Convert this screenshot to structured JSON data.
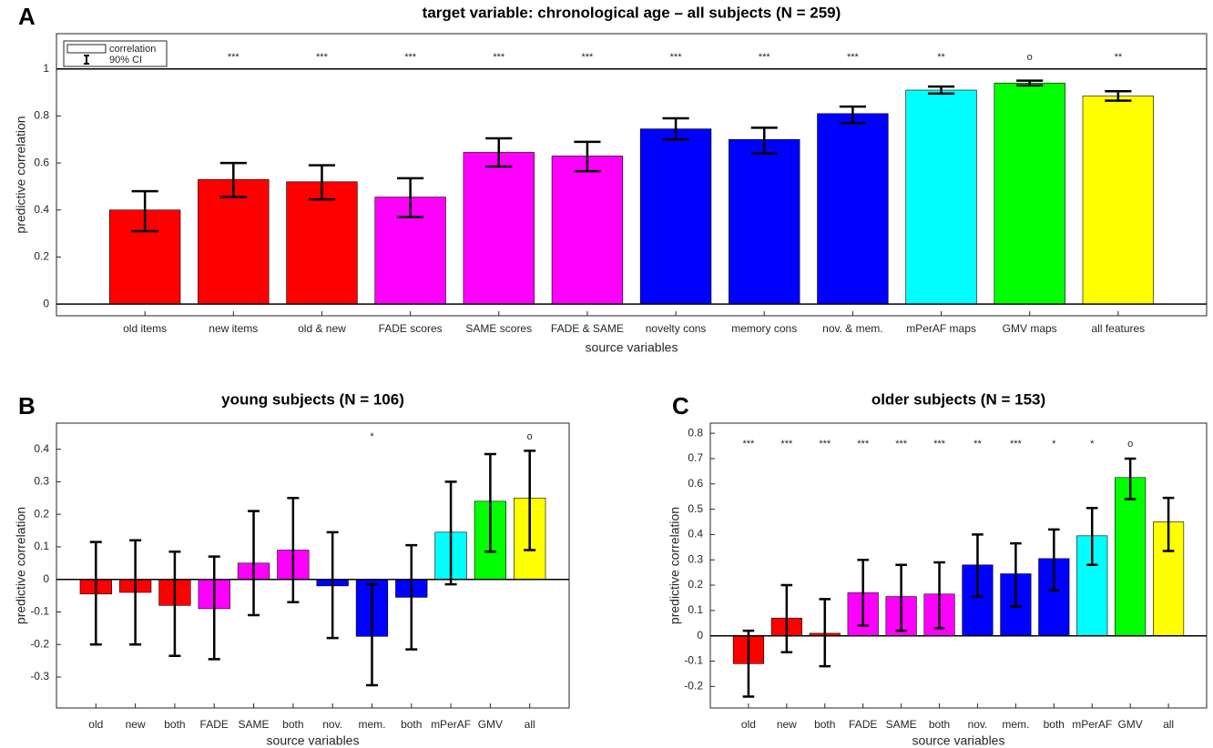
{
  "chart_data": [
    {
      "type": "bar",
      "panel": "A",
      "title": "target variable: chronological age – all subjects (N = 259)",
      "xlabel": "source variables",
      "ylabel": "predictive correlation",
      "categories": [
        "old items",
        "new items",
        "old & new",
        "FADE scores",
        "SAME scores",
        "FADE & SAME",
        "novelty cons",
        "memory cons",
        "nov. & mem.",
        "mPerAF maps",
        "GMV maps",
        "all features"
      ],
      "values": [
        0.4,
        0.53,
        0.52,
        0.455,
        0.645,
        0.63,
        0.745,
        0.7,
        0.81,
        0.91,
        0.94,
        0.885
      ],
      "ci_low": [
        0.31,
        0.455,
        0.445,
        0.37,
        0.585,
        0.565,
        0.7,
        0.64,
        0.77,
        0.895,
        0.93,
        0.865
      ],
      "ci_high": [
        0.48,
        0.6,
        0.59,
        0.535,
        0.705,
        0.69,
        0.79,
        0.75,
        0.84,
        0.925,
        0.95,
        0.905
      ],
      "colors": [
        "#ff0000",
        "#ff0000",
        "#ff0000",
        "#ff00ff",
        "#ff00ff",
        "#ff00ff",
        "#0000ff",
        "#0000ff",
        "#0000ff",
        "#00ffff",
        "#00ff00",
        "#ffff00"
      ],
      "significance": [
        null,
        "***",
        "***",
        "***",
        "***",
        "***",
        "***",
        "***",
        "***",
        "**",
        "o",
        "**"
      ],
      "ylim": [
        -0.05,
        1.15
      ],
      "yticks": [
        0,
        0.2,
        0.4,
        0.6,
        0.8,
        1
      ],
      "hlines": [
        0,
        1
      ],
      "legend": {
        "entries": [
          "correlation",
          "90% CI"
        ],
        "position": "upper left"
      }
    },
    {
      "type": "bar",
      "panel": "B",
      "title": "young subjects (N = 106)",
      "xlabel": "source variables",
      "ylabel": "predictive correlation",
      "categories": [
        "old",
        "new",
        "both",
        "FADE",
        "SAME",
        "both",
        "nov.",
        "mem.",
        "both",
        "mPerAF",
        "GMV",
        "all"
      ],
      "values": [
        -0.045,
        -0.04,
        -0.08,
        -0.09,
        0.05,
        0.09,
        -0.02,
        -0.175,
        -0.055,
        0.145,
        0.24,
        0.25
      ],
      "ci_low": [
        -0.2,
        -0.2,
        -0.235,
        -0.245,
        -0.11,
        -0.07,
        -0.18,
        -0.325,
        -0.215,
        -0.015,
        0.085,
        0.09
      ],
      "ci_high": [
        0.115,
        0.12,
        0.085,
        0.07,
        0.21,
        0.25,
        0.145,
        -0.015,
        0.105,
        0.3,
        0.385,
        0.395
      ],
      "colors": [
        "#ff0000",
        "#ff0000",
        "#ff0000",
        "#ff00ff",
        "#ff00ff",
        "#ff00ff",
        "#0000ff",
        "#0000ff",
        "#0000ff",
        "#00ffff",
        "#00ff00",
        "#ffff00"
      ],
      "significance": [
        null,
        null,
        null,
        null,
        null,
        null,
        null,
        "*",
        null,
        null,
        null,
        "o"
      ],
      "ylim": [
        -0.395,
        0.48
      ],
      "yticks": [
        -0.3,
        -0.2,
        -0.1,
        0,
        0.1,
        0.2,
        0.3,
        0.4
      ],
      "hlines": [
        0
      ]
    },
    {
      "type": "bar",
      "panel": "C",
      "title": "older subjects (N = 153)",
      "xlabel": "source variables",
      "ylabel": "predictive correlation",
      "categories": [
        "old",
        "new",
        "both",
        "FADE",
        "SAME",
        "both",
        "nov.",
        "mem.",
        "both",
        "mPerAF",
        "GMV",
        "all"
      ],
      "values": [
        -0.11,
        0.07,
        0.01,
        0.17,
        0.155,
        0.165,
        0.28,
        0.245,
        0.305,
        0.395,
        0.625,
        0.45
      ],
      "ci_low": [
        -0.24,
        -0.065,
        -0.12,
        0.04,
        0.02,
        0.03,
        0.155,
        0.115,
        0.18,
        0.28,
        0.54,
        0.335
      ],
      "ci_high": [
        0.02,
        0.2,
        0.145,
        0.3,
        0.28,
        0.29,
        0.4,
        0.365,
        0.42,
        0.505,
        0.7,
        0.545
      ],
      "colors": [
        "#ff0000",
        "#ff0000",
        "#ff0000",
        "#ff00ff",
        "#ff00ff",
        "#ff00ff",
        "#0000ff",
        "#0000ff",
        "#0000ff",
        "#00ffff",
        "#00ff00",
        "#ffff00"
      ],
      "significance": [
        "***",
        "***",
        "***",
        "***",
        "***",
        "***",
        "**",
        "***",
        "*",
        "*",
        "o",
        null
      ],
      "ylim": [
        -0.285,
        0.84
      ],
      "yticks": [
        -0.2,
        -0.1,
        0,
        0.1,
        0.2,
        0.3,
        0.4,
        0.5,
        0.6,
        0.7,
        0.8
      ],
      "hlines": [
        0
      ]
    }
  ]
}
